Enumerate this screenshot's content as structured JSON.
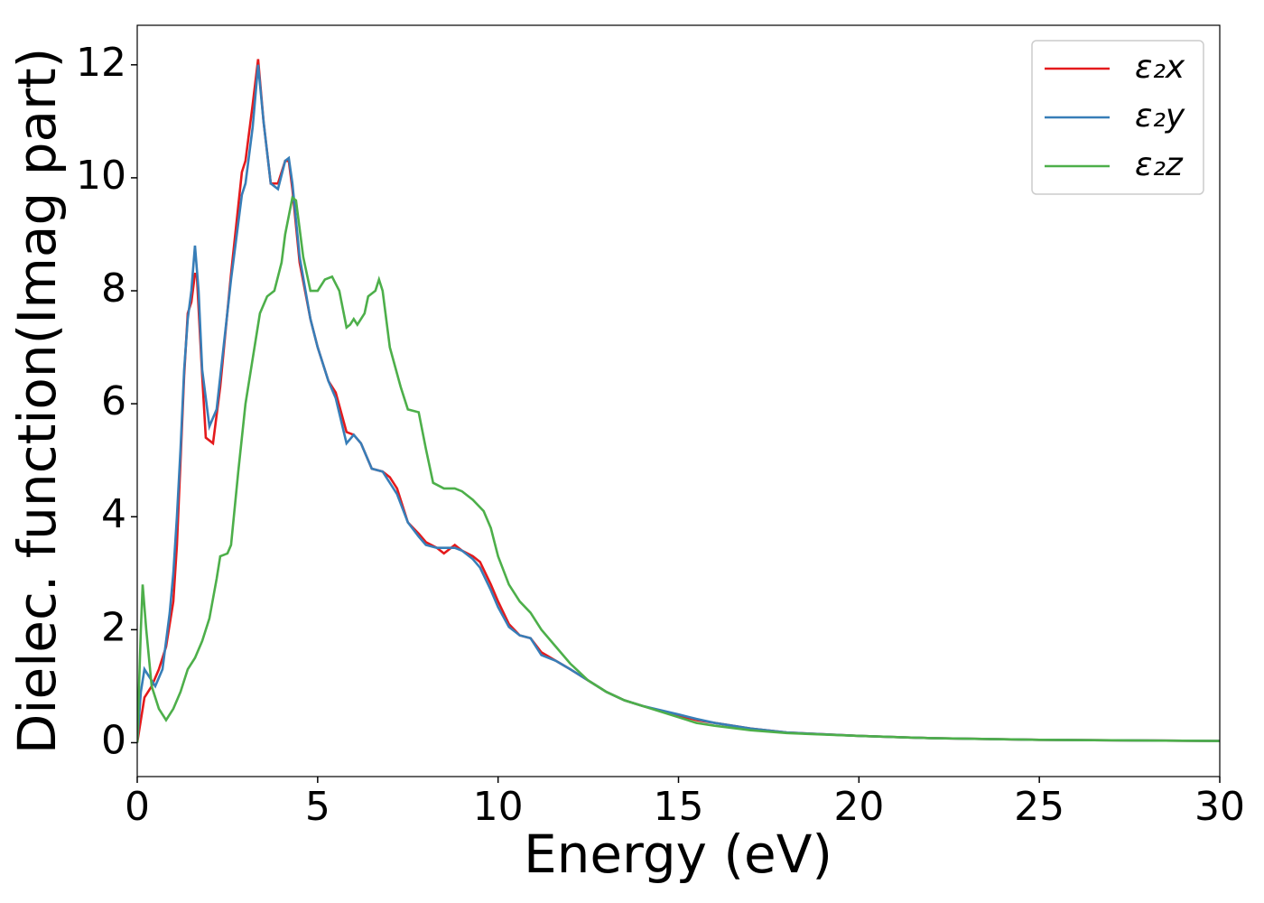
{
  "chart_data": {
    "type": "line",
    "xlabel": "Energy (eV)",
    "ylabel": "Dielec. function(Imag part)",
    "xlim": [
      0,
      30
    ],
    "xticks": [
      0,
      5,
      10,
      15,
      20,
      25,
      30
    ],
    "ylim": [
      -0.6,
      12.7
    ],
    "yticks": [
      0,
      2,
      4,
      6,
      8,
      10,
      12
    ],
    "grid": false,
    "legend": "upper right",
    "series": [
      {
        "name": "ε₂x",
        "color": "#e41a1c",
        "x": [
          0,
          0.1,
          0.2,
          0.4,
          0.6,
          0.8,
          1.0,
          1.1,
          1.2,
          1.3,
          1.4,
          1.5,
          1.6,
          1.65,
          1.8,
          1.9,
          2.1,
          2.3,
          2.6,
          2.9,
          3.0,
          3.2,
          3.35,
          3.5,
          3.7,
          3.9,
          4.1,
          4.2,
          4.3,
          4.5,
          4.8,
          5.0,
          5.3,
          5.5,
          5.8,
          6.0,
          6.2,
          6.5,
          6.8,
          7.0,
          7.2,
          7.5,
          7.8,
          8.0,
          8.3,
          8.5,
          8.8,
          9.0,
          9.3,
          9.5,
          9.8,
          10.0,
          10.3,
          10.6,
          10.9,
          11.2,
          11.6,
          12.0,
          12.5,
          13.0,
          13.5,
          14,
          15,
          15.5,
          16,
          17,
          18,
          20,
          22,
          25,
          30
        ],
        "values": [
          0,
          0.4,
          0.8,
          1.0,
          1.3,
          1.7,
          2.5,
          3.5,
          5.0,
          6.5,
          7.6,
          7.8,
          8.3,
          8.3,
          6.5,
          5.4,
          5.3,
          6.3,
          8.3,
          10.1,
          10.3,
          11.3,
          12.1,
          11.0,
          9.9,
          9.9,
          10.3,
          10.3,
          9.8,
          8.5,
          7.5,
          7.0,
          6.4,
          6.2,
          5.5,
          5.45,
          5.3,
          4.85,
          4.8,
          4.7,
          4.5,
          3.9,
          3.7,
          3.55,
          3.45,
          3.35,
          3.5,
          3.4,
          3.3,
          3.2,
          2.8,
          2.5,
          2.1,
          1.9,
          1.85,
          1.6,
          1.45,
          1.3,
          1.1,
          0.9,
          0.75,
          0.65,
          0.48,
          0.4,
          0.35,
          0.25,
          0.18,
          0.12,
          0.08,
          0.05,
          0.03
        ]
      },
      {
        "name": "ε₂y",
        "color": "#377eb8",
        "x": [
          0,
          0.1,
          0.2,
          0.3,
          0.5,
          0.7,
          0.9,
          1.0,
          1.1,
          1.2,
          1.3,
          1.4,
          1.5,
          1.6,
          1.7,
          1.8,
          2.0,
          2.2,
          2.6,
          2.9,
          3.0,
          3.2,
          3.35,
          3.5,
          3.7,
          3.9,
          4.1,
          4.2,
          4.3,
          4.5,
          4.8,
          5.0,
          5.3,
          5.5,
          5.8,
          6.0,
          6.2,
          6.5,
          6.8,
          7.0,
          7.2,
          7.5,
          7.8,
          8.0,
          8.3,
          8.5,
          8.8,
          9.0,
          9.3,
          9.5,
          9.8,
          10.0,
          10.3,
          10.6,
          10.9,
          11.2,
          11.6,
          12.0,
          12.5,
          13.0,
          13.5,
          14,
          15,
          15.5,
          16,
          17,
          18,
          20,
          22,
          25,
          30
        ],
        "values": [
          0,
          0.9,
          1.3,
          1.2,
          1.0,
          1.3,
          2.3,
          3.0,
          4.0,
          5.2,
          6.6,
          7.5,
          8.0,
          8.8,
          8.0,
          6.6,
          5.6,
          5.9,
          8.2,
          9.7,
          9.9,
          10.9,
          12.0,
          11.0,
          9.9,
          9.8,
          10.3,
          10.35,
          9.9,
          8.6,
          7.5,
          7.0,
          6.4,
          6.1,
          5.3,
          5.45,
          5.3,
          4.85,
          4.8,
          4.6,
          4.4,
          3.9,
          3.65,
          3.5,
          3.45,
          3.45,
          3.45,
          3.4,
          3.25,
          3.1,
          2.7,
          2.4,
          2.05,
          1.9,
          1.85,
          1.55,
          1.45,
          1.3,
          1.1,
          0.9,
          0.75,
          0.65,
          0.5,
          0.42,
          0.35,
          0.25,
          0.18,
          0.12,
          0.08,
          0.05,
          0.03
        ]
      },
      {
        "name": "ε₂z",
        "color": "#4daf4a",
        "x": [
          0,
          0.1,
          0.15,
          0.25,
          0.4,
          0.6,
          0.8,
          1.0,
          1.2,
          1.4,
          1.6,
          1.8,
          2.0,
          2.2,
          2.3,
          2.5,
          2.6,
          2.8,
          3.0,
          3.2,
          3.4,
          3.6,
          3.8,
          4.0,
          4.1,
          4.3,
          4.4,
          4.6,
          4.8,
          5.0,
          5.2,
          5.4,
          5.6,
          5.8,
          5.9,
          6.0,
          6.1,
          6.3,
          6.4,
          6.6,
          6.7,
          6.8,
          7.0,
          7.3,
          7.5,
          7.8,
          8.0,
          8.2,
          8.5,
          8.8,
          9.0,
          9.3,
          9.6,
          9.8,
          10.0,
          10.3,
          10.6,
          10.9,
          11.2,
          11.6,
          12.0,
          12.5,
          13.0,
          13.5,
          14,
          15,
          15.5,
          16,
          17,
          18,
          20,
          22,
          25,
          30
        ],
        "values": [
          0,
          2.0,
          2.8,
          2.0,
          1.0,
          0.6,
          0.4,
          0.6,
          0.9,
          1.3,
          1.5,
          1.8,
          2.2,
          2.9,
          3.3,
          3.35,
          3.5,
          4.8,
          6.0,
          6.8,
          7.6,
          7.9,
          8.0,
          8.5,
          9.0,
          9.65,
          9.6,
          8.6,
          8.0,
          8.0,
          8.2,
          8.25,
          8.0,
          7.35,
          7.4,
          7.5,
          7.4,
          7.6,
          7.9,
          8.0,
          8.2,
          8.0,
          7.0,
          6.3,
          5.9,
          5.85,
          5.2,
          4.6,
          4.5,
          4.5,
          4.45,
          4.3,
          4.1,
          3.8,
          3.3,
          2.8,
          2.5,
          2.3,
          2.0,
          1.7,
          1.4,
          1.1,
          0.9,
          0.75,
          0.65,
          0.45,
          0.35,
          0.3,
          0.22,
          0.17,
          0.12,
          0.08,
          0.05,
          0.03
        ]
      }
    ]
  }
}
